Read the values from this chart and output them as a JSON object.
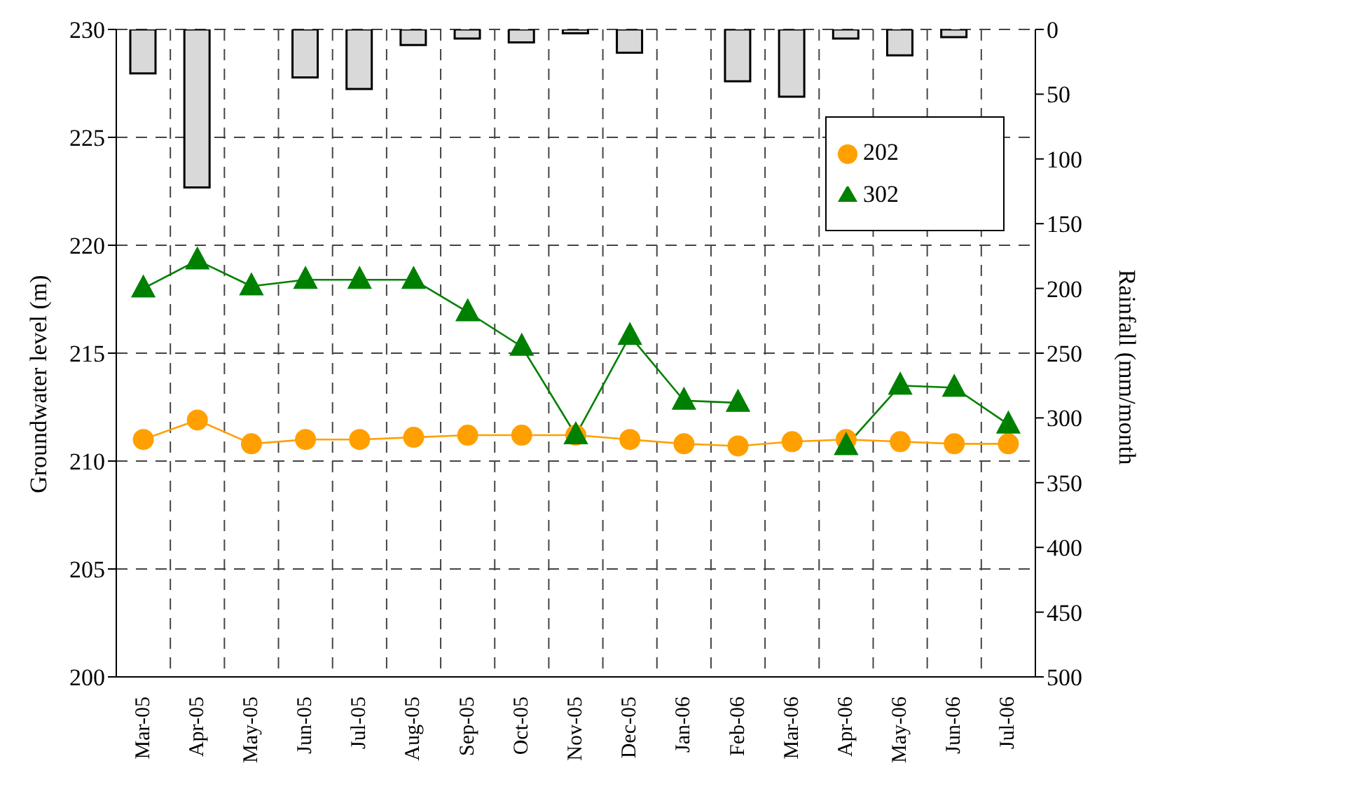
{
  "chart_data": {
    "type": "line",
    "ylabel": "Groundwater level (m)",
    "y2label": "Rainfall (mm/month",
    "categories": [
      "Mar-05",
      "Apr-05",
      "May-05",
      "Jun-05",
      "Jul-05",
      "Aug-05",
      "Sep-05",
      "Oct-05",
      "Nov-05",
      "Dec-05",
      "Jan-06",
      "Feb-06",
      "Mar-06",
      "Apr-06",
      "May-06",
      "Jun-06",
      "Jul-06"
    ],
    "series": [
      {
        "type": "bar",
        "axis": "y2",
        "color": "#d9d9d9",
        "values": [
          34,
          122,
          null,
          37,
          46,
          12,
          7,
          10,
          3,
          18,
          null,
          40,
          52,
          7,
          20,
          6,
          null
        ]
      },
      {
        "name": "202",
        "marker": "circle",
        "color": "#ffa000",
        "values": [
          211.0,
          211.9,
          210.8,
          211.0,
          211.0,
          211.1,
          211.2,
          211.2,
          211.2,
          211.0,
          210.8,
          210.7,
          210.9,
          211.0,
          210.9,
          210.8,
          210.8
        ]
      },
      {
        "name": "302",
        "marker": "triangle",
        "color": "#008000",
        "values": [
          218.0,
          219.3,
          218.1,
          218.4,
          218.4,
          218.4,
          216.9,
          215.3,
          211.2,
          215.8,
          212.8,
          212.7,
          null,
          210.7,
          213.5,
          213.4,
          211.7
        ]
      }
    ],
    "ylim": [
      200,
      230
    ],
    "yticks": [
      200,
      205,
      210,
      215,
      220,
      225,
      230
    ],
    "y2lim": [
      500,
      0
    ],
    "y2ticks": [
      0,
      50,
      100,
      150,
      200,
      250,
      300,
      350,
      400,
      450,
      500
    ],
    "grid": true,
    "line_style": "solid",
    "legend": "top right"
  }
}
